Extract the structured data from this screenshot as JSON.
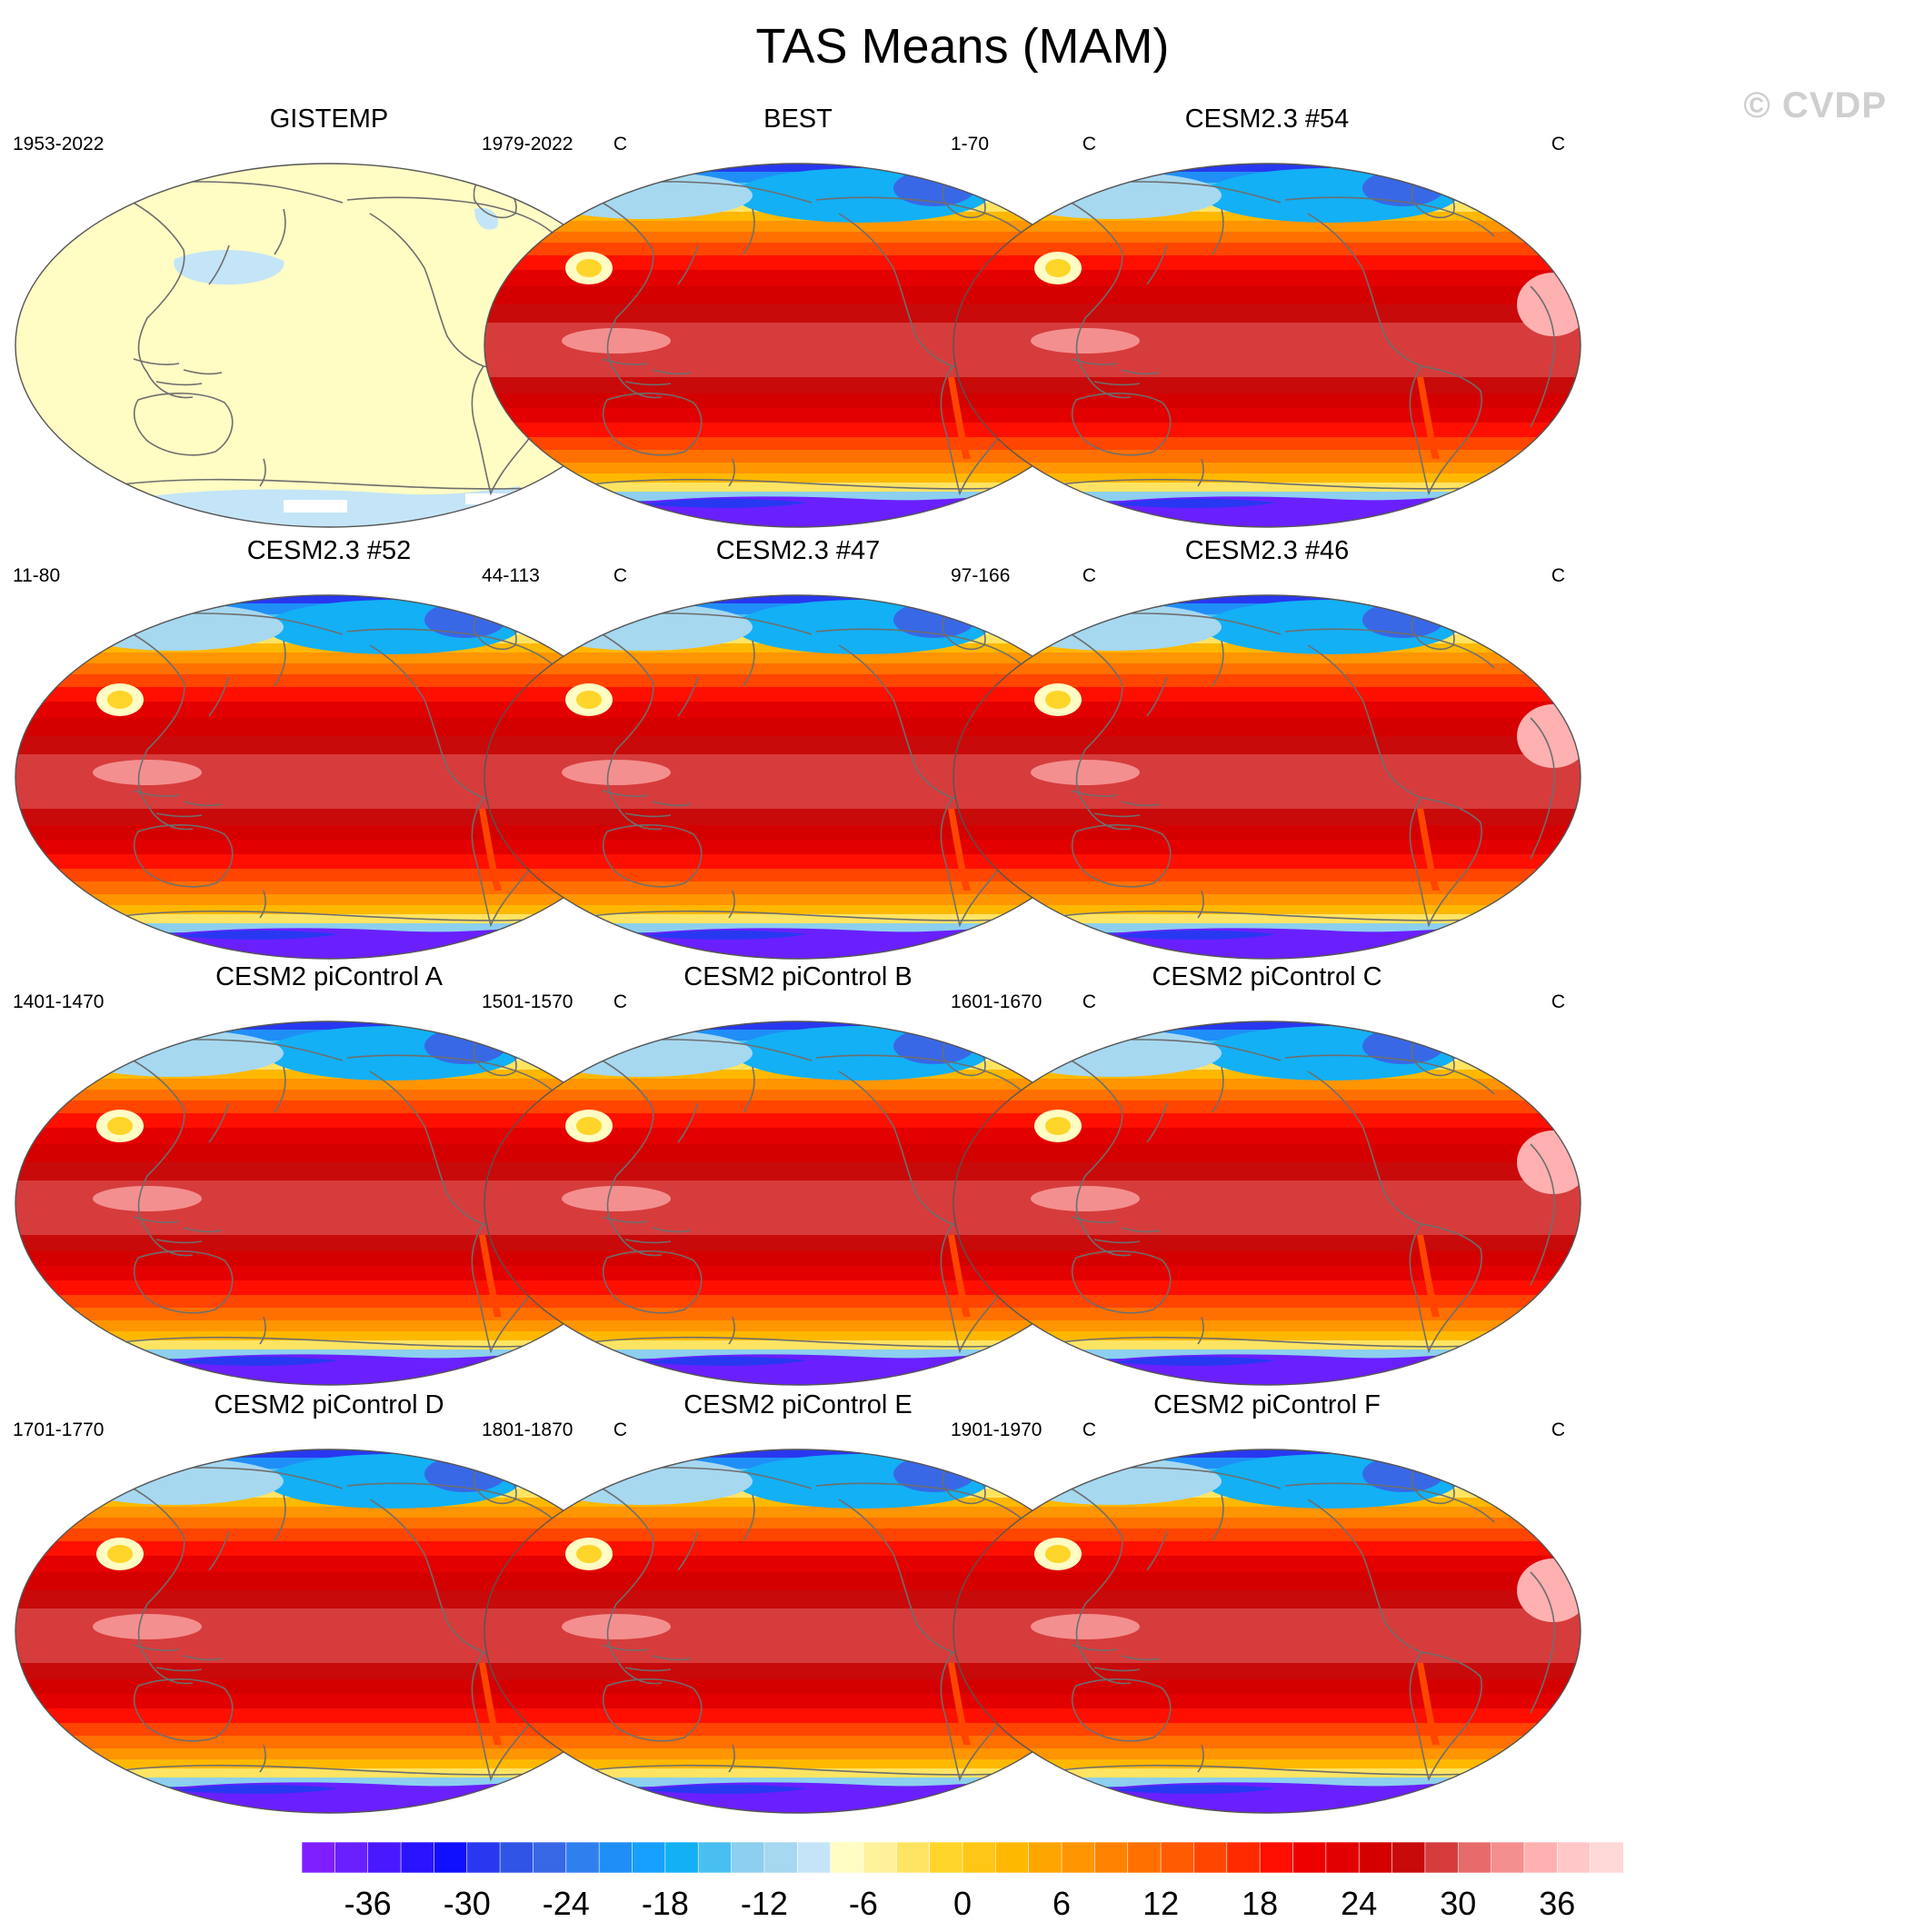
{
  "title": "TAS Means (MAM)",
  "watermark": "© CVDP",
  "units": "C",
  "panels": [
    {
      "name": "GISTEMP",
      "period": "1953-2022",
      "kind": "anomaly"
    },
    {
      "name": "BEST",
      "period": "1979-2022",
      "kind": "full"
    },
    {
      "name": "CESM2.3 #54",
      "period": "1-70",
      "kind": "full"
    },
    {
      "name": "CESM2.3 #52",
      "period": "11-80",
      "kind": "full"
    },
    {
      "name": "CESM2.3 #47",
      "period": "44-113",
      "kind": "full"
    },
    {
      "name": "CESM2.3 #46",
      "period": "97-166",
      "kind": "full"
    },
    {
      "name": "CESM2 piControl A",
      "period": "1401-1470",
      "kind": "full"
    },
    {
      "name": "CESM2 piControl B",
      "period": "1501-1570",
      "kind": "full"
    },
    {
      "name": "CESM2 piControl C",
      "period": "1601-1670",
      "kind": "full"
    },
    {
      "name": "CESM2 piControl D",
      "period": "1701-1770",
      "kind": "full"
    },
    {
      "name": "CESM2 piControl E",
      "period": "1801-1870",
      "kind": "full"
    },
    {
      "name": "CESM2 piControl F",
      "period": "1901-1970",
      "kind": "full"
    }
  ],
  "colorbar": {
    "min": -40,
    "max": 40,
    "step": 2,
    "tick_values": [
      -36,
      -30,
      -24,
      -18,
      -12,
      -6,
      0,
      6,
      12,
      18,
      24,
      30,
      36
    ],
    "colors": [
      "#7f1fff",
      "#6a1fff",
      "#4a18ff",
      "#2a14ff",
      "#1010ff",
      "#2838f0",
      "#3054e6",
      "#3868e6",
      "#2f7fef",
      "#1f8ff7",
      "#17a0ff",
      "#13b0f5",
      "#48bff0",
      "#8ccfee",
      "#a6d8f0",
      "#c4e5f7",
      "#fffcc4",
      "#fff29c",
      "#ffe463",
      "#ffd52a",
      "#ffc715",
      "#ffb800",
      "#ffa500",
      "#ff9500",
      "#ff8200",
      "#ff7000",
      "#ff5b00",
      "#ff4500",
      "#ff2a00",
      "#ff0f00",
      "#ef0000",
      "#e20000",
      "#d40000",
      "#c80a0a",
      "#d63c3c",
      "#e86b6b",
      "#f48f8f",
      "#ffb0b0",
      "#ffc8c8",
      "#ffd8d8"
    ]
  }
}
